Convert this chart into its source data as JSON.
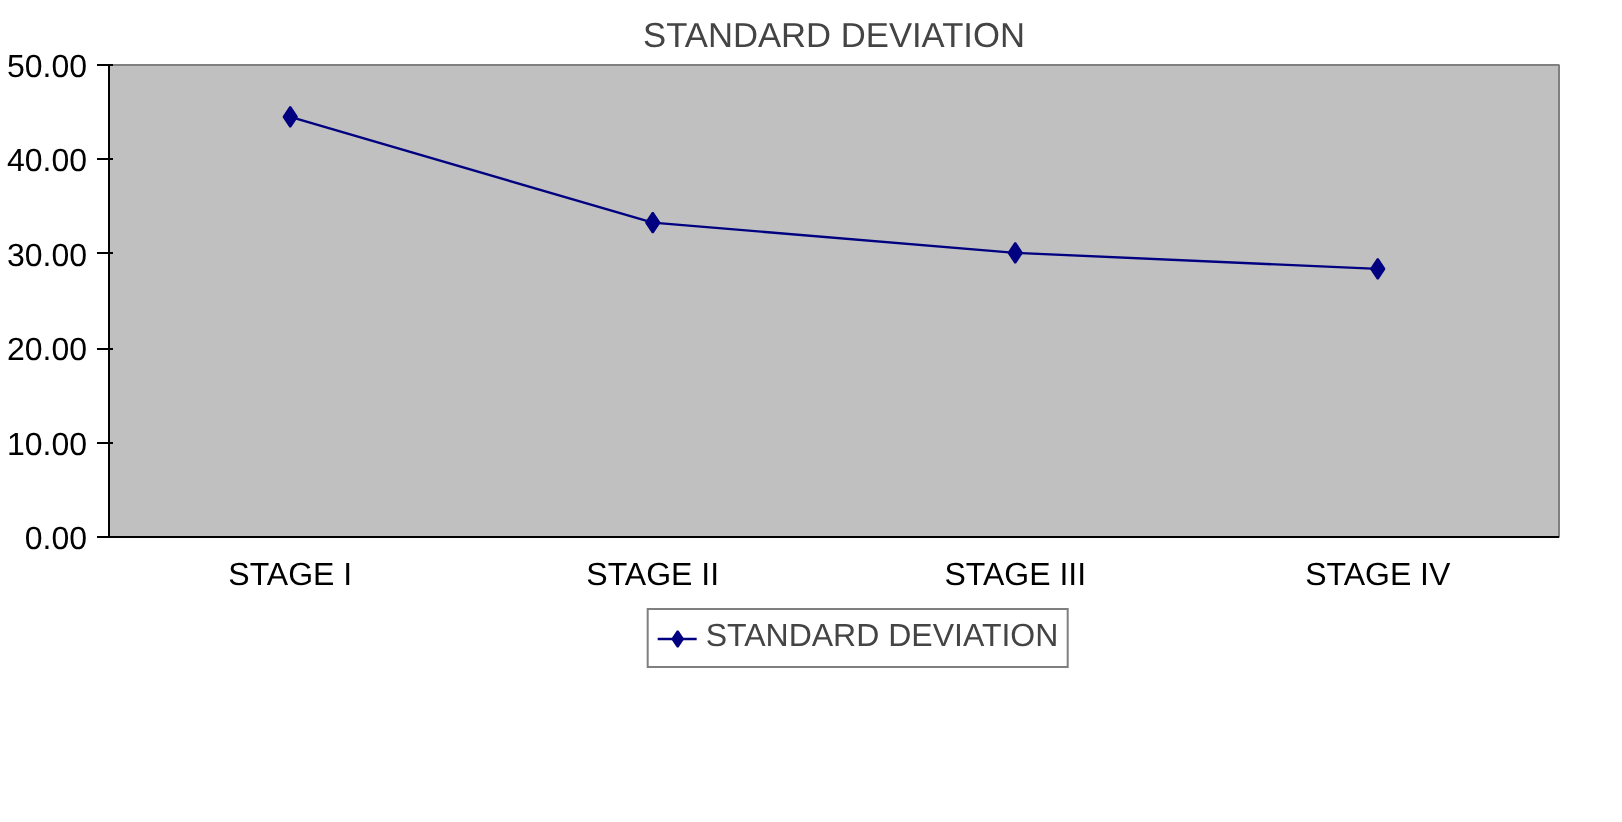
{
  "chart_data": {
    "type": "line",
    "title": "STANDARD DEVIATION",
    "categories": [
      "STAGE I",
      "STAGE II",
      "STAGE III",
      "STAGE IV"
    ],
    "series": [
      {
        "name": "STANDARD DEVIATION",
        "color": "#000080",
        "values": [
          44.5,
          33.3,
          30.1,
          28.4
        ]
      }
    ],
    "ylim": [
      0,
      50
    ],
    "yticks": [
      {
        "value": 0,
        "label": "0.00"
      },
      {
        "value": 10,
        "label": "10.00"
      },
      {
        "value": 20,
        "label": "20.00"
      },
      {
        "value": 30,
        "label": "30.00"
      },
      {
        "value": 40,
        "label": "40.00"
      },
      {
        "value": 50,
        "label": "50.00"
      }
    ],
    "grid": false,
    "legend": "bottom",
    "marker": "diamond",
    "line_style": "solid"
  }
}
